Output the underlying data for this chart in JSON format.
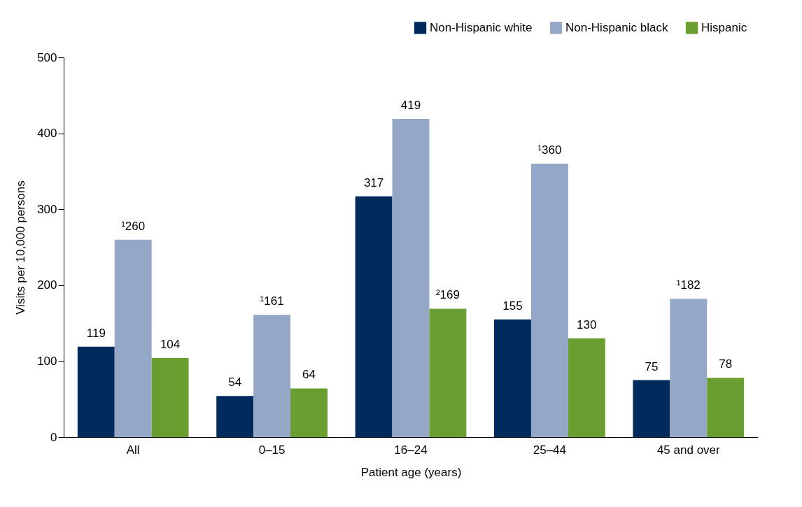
{
  "chart_data": {
    "type": "bar",
    "xlabel": "Patient age (years)",
    "ylabel": "Visits per 10,000 persons",
    "categories": [
      "All",
      "0–15",
      "16–24",
      "25–44",
      "45 and over"
    ],
    "series": [
      {
        "name": "Non-Hispanic white",
        "color": "#002b5c",
        "values": [
          119,
          54,
          317,
          155,
          75
        ],
        "value_labels": [
          "119",
          "54",
          "317",
          "155",
          "75"
        ]
      },
      {
        "name": "Non-Hispanic black",
        "color": "#94a7c7",
        "values": [
          260,
          161,
          419,
          360,
          182
        ],
        "value_labels": [
          "¹260",
          "¹161",
          "419",
          "¹360",
          "¹182"
        ]
      },
      {
        "name": "Hispanic",
        "color": "#6b9e31",
        "values": [
          104,
          64,
          169,
          130,
          78
        ],
        "value_labels": [
          "104",
          "64",
          "²169",
          "130",
          "78"
        ]
      }
    ],
    "ylim": [
      0,
      500
    ],
    "yticks": [
      0,
      100,
      200,
      300,
      400,
      500
    ],
    "grid": false,
    "legend": "top right"
  }
}
